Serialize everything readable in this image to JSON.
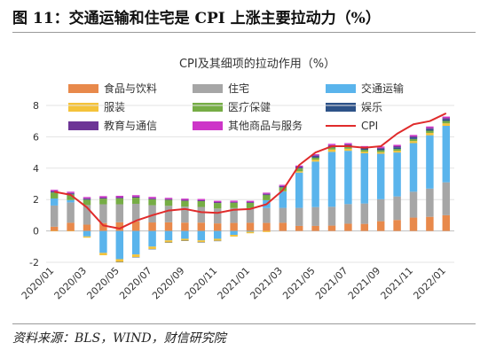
{
  "figure_title": "图 11：交通运输和住宅是 CPI 上涨主要拉动力（%）",
  "source": "资料来源：BLS，WIND，财信研究院",
  "colors": {
    "food": "#e8894b",
    "housing": "#a6a6a6",
    "transport": "#5ab4ec",
    "apparel": "#f4c33a",
    "medical": "#76ad45",
    "recreation": "#2d5288",
    "education": "#6d3596",
    "other": "#cd35c8",
    "cpi": "#e02b2b"
  },
  "chart_data": {
    "type": "bar",
    "stacked": true,
    "title": "CPI及其细项的拉动作用（%）",
    "ylim": [
      -2,
      8
    ],
    "yticks": [
      -2,
      0,
      2,
      4,
      6,
      8
    ],
    "grid": true,
    "legend_placement": "top",
    "categories": [
      "2020/01",
      "2020/02",
      "2020/03",
      "2020/04",
      "2020/05",
      "2020/06",
      "2020/07",
      "2020/08",
      "2020/09",
      "2020/10",
      "2020/11",
      "2020/12",
      "2021/01",
      "2021/02",
      "2021/03",
      "2021/04",
      "2021/05",
      "2021/06",
      "2021/07",
      "2021/08",
      "2021/09",
      "2021/10",
      "2021/11",
      "2021/12",
      "2022/01"
    ],
    "xtick_labels": [
      "2020/01",
      "2020/03",
      "2020/05",
      "2020/07",
      "2020/09",
      "2020/11",
      "2021/01",
      "2021/03",
      "2021/05",
      "2021/07",
      "2021/09",
      "2021/11",
      "2022/01"
    ],
    "series": [
      {
        "key": "food",
        "name": "食品与饮料",
        "values": [
          0.27,
          0.52,
          0.4,
          0.5,
          0.55,
          0.61,
          0.54,
          0.55,
          0.53,
          0.53,
          0.48,
          0.51,
          0.52,
          0.51,
          0.52,
          0.32,
          0.32,
          0.34,
          0.46,
          0.45,
          0.62,
          0.7,
          0.85,
          0.9,
          1.0
        ]
      },
      {
        "key": "housing",
        "name": "住宅",
        "values": [
          1.35,
          1.3,
          1.25,
          1.2,
          1.15,
          1.12,
          1.1,
          1.05,
          1.02,
          1.0,
          0.95,
          0.95,
          0.93,
          0.95,
          0.95,
          1.15,
          1.2,
          1.2,
          1.25,
          1.3,
          1.4,
          1.5,
          1.65,
          1.8,
          2.1
        ]
      },
      {
        "key": "transport",
        "name": "交通运输",
        "values": [
          0.45,
          0.15,
          -0.35,
          -1.4,
          -1.8,
          -1.5,
          -1.0,
          -0.6,
          -0.5,
          -0.6,
          -0.5,
          -0.25,
          -0.05,
          0.5,
          1.05,
          2.25,
          2.9,
          3.5,
          3.4,
          3.2,
          2.9,
          2.8,
          3.1,
          3.4,
          3.6
        ]
      },
      {
        "key": "apparel",
        "name": "服装",
        "values": [
          -0.02,
          -0.01,
          -0.08,
          -0.15,
          -0.18,
          -0.17,
          -0.15,
          -0.13,
          -0.12,
          -0.12,
          -0.13,
          -0.11,
          -0.1,
          -0.07,
          0.02,
          0.08,
          0.12,
          0.15,
          0.13,
          0.1,
          0.1,
          0.11,
          0.13,
          0.15,
          0.16
        ]
      },
      {
        "key": "medical",
        "name": "医疗保健",
        "values": [
          0.38,
          0.36,
          0.34,
          0.36,
          0.38,
          0.39,
          0.38,
          0.38,
          0.37,
          0.37,
          0.35,
          0.34,
          0.34,
          0.34,
          0.24,
          0.18,
          0.13,
          0.13,
          0.12,
          0.12,
          0.12,
          0.12,
          0.13,
          0.14,
          0.15
        ]
      },
      {
        "key": "recreation",
        "name": "娱乐",
        "values": [
          0.04,
          0.04,
          0.03,
          0.0,
          -0.02,
          -0.02,
          -0.01,
          -0.01,
          -0.01,
          -0.01,
          -0.01,
          0.0,
          0.0,
          0.01,
          0.02,
          0.05,
          0.08,
          0.09,
          0.1,
          0.1,
          0.1,
          0.1,
          0.1,
          0.1,
          0.11
        ]
      },
      {
        "key": "education",
        "name": "教育与通信",
        "values": [
          0.05,
          0.05,
          0.06,
          0.07,
          0.07,
          0.07,
          0.06,
          0.05,
          0.06,
          0.06,
          0.06,
          0.05,
          0.05,
          0.06,
          0.07,
          0.07,
          0.07,
          0.06,
          0.06,
          0.06,
          0.06,
          0.07,
          0.07,
          0.08,
          0.08
        ]
      },
      {
        "key": "other",
        "name": "其他商品与服务",
        "values": [
          0.08,
          0.08,
          0.08,
          0.09,
          0.09,
          0.09,
          0.09,
          0.08,
          0.08,
          0.08,
          0.08,
          0.08,
          0.08,
          0.07,
          0.07,
          0.07,
          0.07,
          0.08,
          0.08,
          0.08,
          0.08,
          0.09,
          0.09,
          0.09,
          0.09
        ]
      }
    ],
    "line": {
      "key": "cpi",
      "name": "CPI",
      "values": [
        2.5,
        2.3,
        1.5,
        0.35,
        0.15,
        0.65,
        1.0,
        1.3,
        1.4,
        1.2,
        1.15,
        1.35,
        1.4,
        1.7,
        2.6,
        4.2,
        5.0,
        5.4,
        5.4,
        5.3,
        5.4,
        6.2,
        6.8,
        7.0,
        7.5
      ]
    }
  }
}
